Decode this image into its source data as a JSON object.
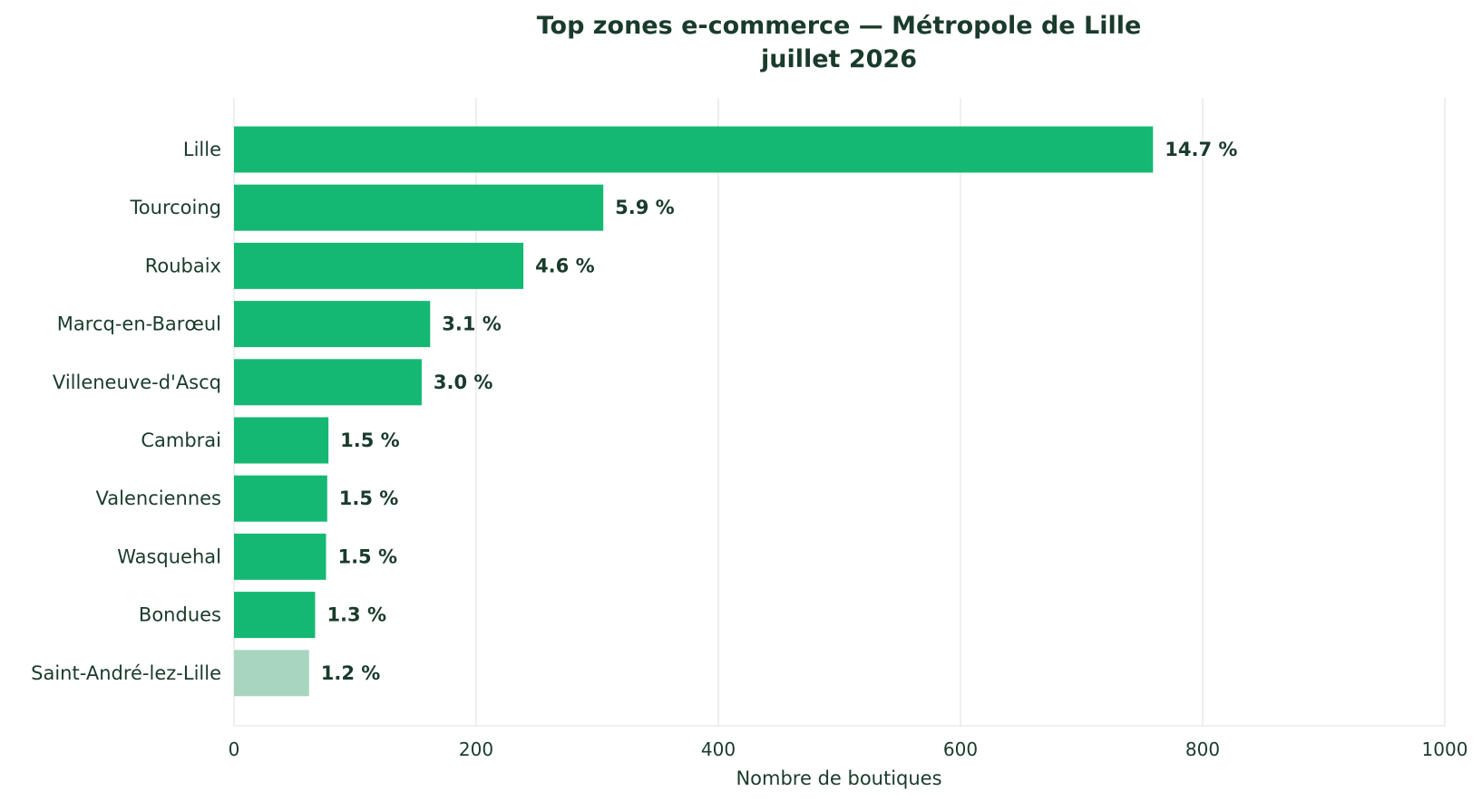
{
  "chart_data": {
    "type": "bar",
    "orientation": "horizontal",
    "title": "Top zones e-commerce — Métropole de Lille",
    "subtitle": "juillet 2026",
    "xlabel": "Nombre de boutiques",
    "ylabel": "",
    "xlim": [
      0,
      1000
    ],
    "xticks": [
      0,
      200,
      400,
      600,
      800,
      1000
    ],
    "grid": "vertical",
    "categories": [
      "Lille",
      "Tourcoing",
      "Roubaix",
      "Marcq-en-Barœul",
      "Villeneuve-d'Ascq",
      "Cambrai",
      "Valenciennes",
      "Wasquehal",
      "Bondues",
      "Saint-André-lez-Lille"
    ],
    "values": [
      759,
      305,
      239,
      162,
      155,
      78,
      77,
      76,
      67,
      62
    ],
    "data_labels": [
      "14.7 %",
      "5.9 %",
      "4.6 %",
      "3.1 %",
      "3.0 %",
      "1.5 %",
      "1.5 %",
      "1.5 %",
      "1.3 %",
      "1.2 %"
    ],
    "colors": [
      "#14b872",
      "#14b872",
      "#14b872",
      "#14b872",
      "#14b872",
      "#14b872",
      "#14b872",
      "#14b872",
      "#14b872",
      "#a8d5c0"
    ]
  }
}
